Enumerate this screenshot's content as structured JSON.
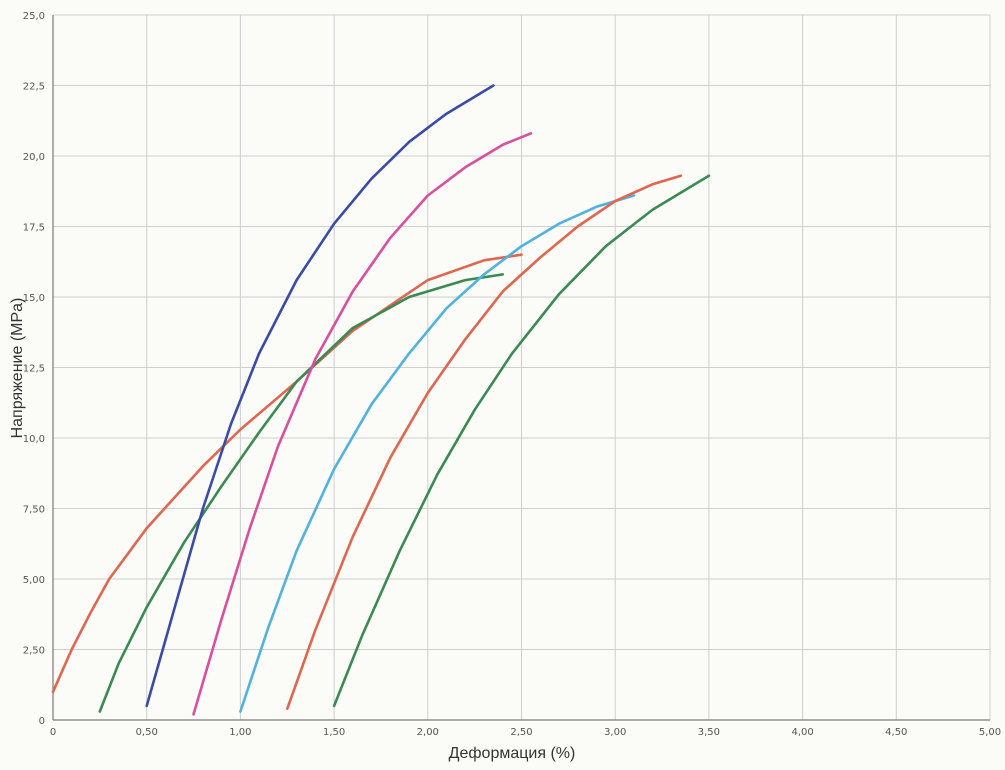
{
  "chart_data": {
    "type": "line",
    "xlabel": "Деформация (%)",
    "ylabel": "Напряжение (MPa)",
    "xlim": [
      0,
      5.0
    ],
    "ylim": [
      0,
      25.0
    ],
    "grid": true,
    "x_ticks": [
      "0",
      "0,50",
      "1,00",
      "1,50",
      "2,00",
      "2,50",
      "3,00",
      "3,50",
      "4,00",
      "4,50",
      "5,00"
    ],
    "y_ticks": [
      "0",
      "2,50",
      "5,00",
      "7,50",
      "10,0",
      "12,5",
      "15,0",
      "17,5",
      "20,0",
      "22,5",
      "25,0"
    ],
    "series": [
      {
        "color": "#e0664f",
        "x": [
          0.0,
          0.1,
          0.2,
          0.3,
          0.5,
          0.8,
          1.0,
          1.3,
          1.6,
          2.0,
          2.3,
          2.5
        ],
        "y": [
          1.0,
          2.5,
          3.8,
          5.0,
          6.8,
          9.0,
          10.3,
          12.0,
          13.8,
          15.6,
          16.3,
          16.5
        ]
      },
      {
        "color": "#3b8a52",
        "x": [
          0.25,
          0.35,
          0.5,
          0.7,
          0.9,
          1.1,
          1.3,
          1.6,
          1.9,
          2.2,
          2.4
        ],
        "y": [
          0.3,
          2.0,
          4.0,
          6.3,
          8.3,
          10.2,
          12.0,
          13.9,
          15.0,
          15.6,
          15.8
        ]
      },
      {
        "color": "#3a4aa8",
        "x": [
          0.5,
          0.65,
          0.8,
          0.95,
          1.1,
          1.3,
          1.5,
          1.7,
          1.9,
          2.1,
          2.35
        ],
        "y": [
          0.5,
          4.0,
          7.5,
          10.5,
          13.0,
          15.6,
          17.6,
          19.2,
          20.5,
          21.5,
          22.5
        ]
      },
      {
        "color": "#d94f9e",
        "x": [
          0.75,
          0.9,
          1.05,
          1.2,
          1.4,
          1.6,
          1.8,
          2.0,
          2.2,
          2.4,
          2.55
        ],
        "y": [
          0.2,
          3.6,
          6.8,
          9.7,
          12.8,
          15.2,
          17.1,
          18.6,
          19.6,
          20.4,
          20.8
        ]
      },
      {
        "color": "#4fb2e0",
        "x": [
          1.0,
          1.15,
          1.3,
          1.5,
          1.7,
          1.9,
          2.1,
          2.3,
          2.5,
          2.7,
          2.9,
          3.1
        ],
        "y": [
          0.3,
          3.3,
          6.0,
          8.9,
          11.2,
          13.0,
          14.6,
          15.8,
          16.8,
          17.6,
          18.2,
          18.6
        ]
      },
      {
        "color": "#e0664f",
        "x": [
          1.25,
          1.4,
          1.6,
          1.8,
          2.0,
          2.2,
          2.4,
          2.6,
          2.8,
          3.0,
          3.2,
          3.35
        ],
        "y": [
          0.4,
          3.2,
          6.5,
          9.3,
          11.6,
          13.5,
          15.2,
          16.4,
          17.5,
          18.4,
          19.0,
          19.3
        ]
      },
      {
        "color": "#3b8a52",
        "x": [
          1.5,
          1.65,
          1.85,
          2.05,
          2.25,
          2.45,
          2.7,
          2.95,
          3.2,
          3.5
        ],
        "y": [
          0.5,
          3.0,
          6.0,
          8.7,
          11.0,
          13.0,
          15.1,
          16.8,
          18.1,
          19.3
        ]
      }
    ]
  }
}
